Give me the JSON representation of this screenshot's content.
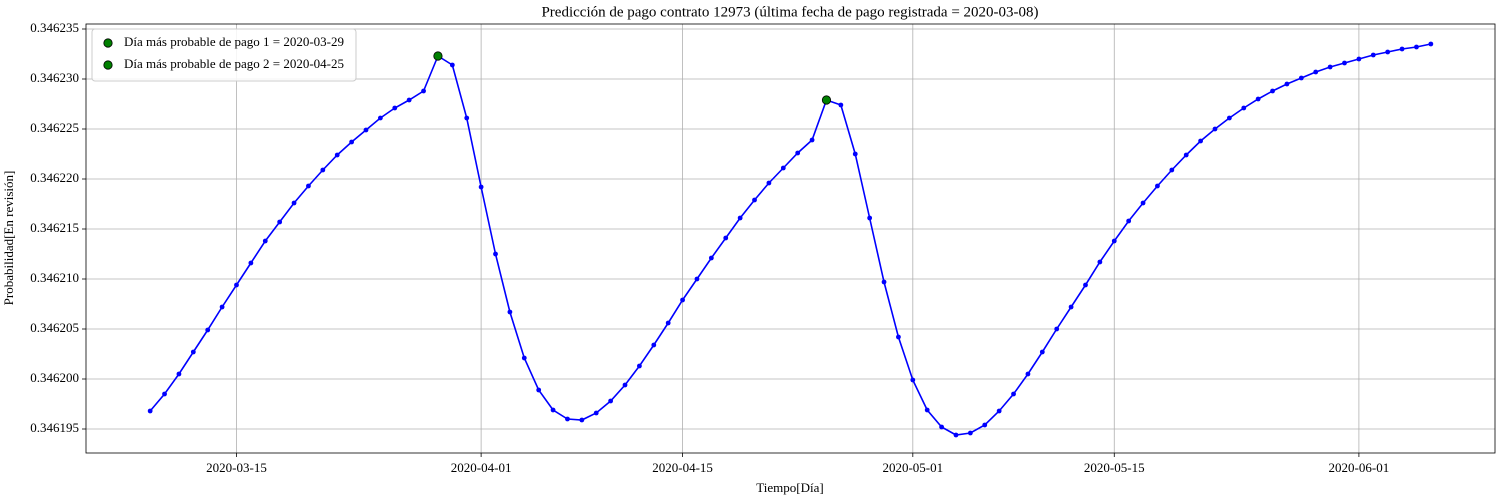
{
  "chart_data": {
    "type": "line",
    "title": "Predicción de pago contrato 12973 (última fecha de pago registrada = 2020-03-08)",
    "x_label": "Tiempo[Día]",
    "y_label": "Probabilidad[En revisión]",
    "x": [
      "2020-03-09",
      "2020-03-10",
      "2020-03-11",
      "2020-03-12",
      "2020-03-13",
      "2020-03-14",
      "2020-03-15",
      "2020-03-16",
      "2020-03-17",
      "2020-03-18",
      "2020-03-19",
      "2020-03-20",
      "2020-03-21",
      "2020-03-22",
      "2020-03-23",
      "2020-03-24",
      "2020-03-25",
      "2020-03-26",
      "2020-03-27",
      "2020-03-28",
      "2020-03-29",
      "2020-03-30",
      "2020-03-31",
      "2020-04-01",
      "2020-04-02",
      "2020-04-03",
      "2020-04-04",
      "2020-04-05",
      "2020-04-06",
      "2020-04-07",
      "2020-04-08",
      "2020-04-09",
      "2020-04-10",
      "2020-04-11",
      "2020-04-12",
      "2020-04-13",
      "2020-04-14",
      "2020-04-15",
      "2020-04-16",
      "2020-04-17",
      "2020-04-18",
      "2020-04-19",
      "2020-04-20",
      "2020-04-21",
      "2020-04-22",
      "2020-04-23",
      "2020-04-24",
      "2020-04-25",
      "2020-04-26",
      "2020-04-27",
      "2020-04-28",
      "2020-04-29",
      "2020-04-30",
      "2020-05-01",
      "2020-05-02",
      "2020-05-03",
      "2020-05-04",
      "2020-05-05",
      "2020-05-06",
      "2020-05-07",
      "2020-05-08",
      "2020-05-09",
      "2020-05-10",
      "2020-05-11",
      "2020-05-12",
      "2020-05-13",
      "2020-05-14",
      "2020-05-15",
      "2020-05-16",
      "2020-05-17",
      "2020-05-18",
      "2020-05-19",
      "2020-05-20",
      "2020-05-21",
      "2020-05-22",
      "2020-05-23",
      "2020-05-24",
      "2020-05-25",
      "2020-05-26",
      "2020-05-27",
      "2020-05-28",
      "2020-05-29",
      "2020-05-30",
      "2020-05-31",
      "2020-06-01",
      "2020-06-02",
      "2020-06-03",
      "2020-06-04",
      "2020-06-05",
      "2020-06-06"
    ],
    "series": [
      {
        "color": "#0000ff",
        "values": [
          0.3461968,
          0.3461985,
          0.3462005,
          0.3462027,
          0.3462049,
          0.3462072,
          0.3462094,
          0.3462116,
          0.3462138,
          0.3462157,
          0.3462176,
          0.3462193,
          0.3462209,
          0.3462224,
          0.3462237,
          0.3462249,
          0.3462261,
          0.3462271,
          0.3462279,
          0.3462288,
          0.3462323,
          0.3462314,
          0.3462261,
          0.3462192,
          0.3462125,
          0.3462067,
          0.3462021,
          0.3461989,
          0.3461969,
          0.346196,
          0.3461959,
          0.3461966,
          0.3461978,
          0.3461994,
          0.3462013,
          0.3462034,
          0.3462056,
          0.3462079,
          0.34621,
          0.3462121,
          0.3462141,
          0.3462161,
          0.3462179,
          0.3462196,
          0.3462211,
          0.3462226,
          0.3462239,
          0.3462279,
          0.3462274,
          0.3462225,
          0.3462161,
          0.3462097,
          0.3462042,
          0.3461999,
          0.3461969,
          0.3461952,
          0.3461944,
          0.3461946,
          0.3461954,
          0.3461968,
          0.3461985,
          0.3462005,
          0.3462027,
          0.346205,
          0.3462072,
          0.3462094,
          0.3462117,
          0.3462138,
          0.3462158,
          0.3462176,
          0.3462193,
          0.3462209,
          0.3462224,
          0.3462238,
          0.346225,
          0.3462261,
          0.3462271,
          0.346228,
          0.3462288,
          0.3462295,
          0.3462301,
          0.3462307,
          0.3462312,
          0.3462316,
          0.346232,
          0.3462324,
          0.3462327,
          0.346233,
          0.3462332,
          0.3462335
        ]
      }
    ],
    "highlights": [
      {
        "name": "Día más probable de pago 1 = 2020-03-29",
        "x": "2020-03-29",
        "value": 0.3462323,
        "color": "#008000"
      },
      {
        "name": "Día más probable de pago 2 = 2020-04-25",
        "x": "2020-04-25",
        "value": 0.3462279,
        "color": "#008000"
      }
    ],
    "xlim": [
      "2020-03-04T13:00",
      "2020-06-10T11:00"
    ],
    "xticks": [
      "2020-03-15",
      "2020-04-01",
      "2020-04-15",
      "2020-05-01",
      "2020-05-15",
      "2020-06-01"
    ],
    "ylim": [
      0.3461926,
      0.3462355
    ],
    "yticks": [
      0.346195,
      {
        "value": 0.3462,
        "label": "0.346200"
      },
      0.346205,
      {
        "value": 0.34621,
        "label": "0.346210"
      },
      0.346215,
      {
        "value": 0.34622,
        "label": "0.346220"
      },
      0.346225,
      {
        "value": 0.34623,
        "label": "0.346230"
      },
      0.346235
    ],
    "grid": true,
    "legend": "upper-left"
  }
}
